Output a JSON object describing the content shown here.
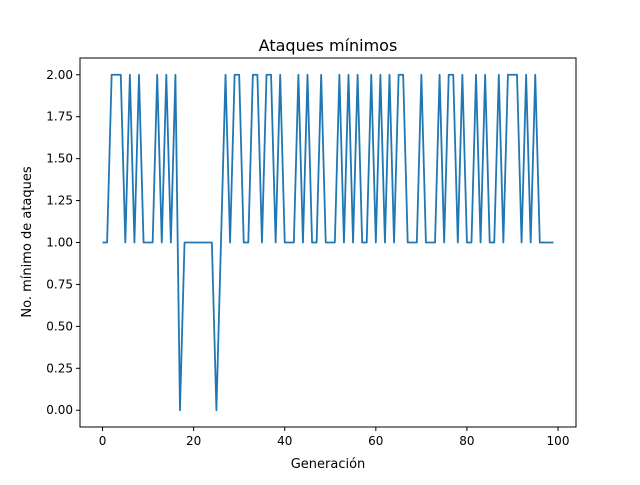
{
  "chart_data": {
    "type": "line",
    "title": "Ataques mínimos",
    "xlabel": "Generación",
    "ylabel": "No. mínimo de ataques",
    "xlim": [
      -4.95,
      103.95
    ],
    "ylim": [
      -0.1,
      2.1
    ],
    "xticks": [
      0,
      20,
      40,
      60,
      80,
      100
    ],
    "yticks": [
      0.0,
      0.25,
      0.5,
      0.75,
      1.0,
      1.25,
      1.5,
      1.75,
      2.0
    ],
    "xtick_labels": [
      "0",
      "20",
      "40",
      "60",
      "80",
      "100"
    ],
    "ytick_labels": [
      "0.00",
      "0.25",
      "0.50",
      "0.75",
      "1.00",
      "1.25",
      "1.50",
      "1.75",
      "2.00"
    ],
    "grid": false,
    "series": [
      {
        "color": "#1f77b4",
        "x": [
          0,
          1,
          2,
          3,
          4,
          5,
          6,
          7,
          8,
          9,
          10,
          11,
          12,
          13,
          14,
          15,
          16,
          17,
          18,
          19,
          20,
          21,
          22,
          23,
          24,
          25,
          26,
          27,
          28,
          29,
          30,
          31,
          32,
          33,
          34,
          35,
          36,
          37,
          38,
          39,
          40,
          41,
          42,
          43,
          44,
          45,
          46,
          47,
          48,
          49,
          50,
          51,
          52,
          53,
          54,
          55,
          56,
          57,
          58,
          59,
          60,
          61,
          62,
          63,
          64,
          65,
          66,
          67,
          68,
          69,
          70,
          71,
          72,
          73,
          74,
          75,
          76,
          77,
          78,
          79,
          80,
          81,
          82,
          83,
          84,
          85,
          86,
          87,
          88,
          89,
          90,
          91,
          92,
          93,
          94,
          95,
          96,
          97,
          98,
          99
        ],
        "y": [
          1,
          1,
          2,
          2,
          2,
          1,
          2,
          1,
          2,
          1,
          1,
          1,
          2,
          1,
          2,
          1,
          2,
          0,
          1,
          1,
          1,
          1,
          1,
          1,
          1,
          0,
          1,
          2,
          1,
          2,
          2,
          1,
          1,
          2,
          2,
          1,
          2,
          2,
          1,
          2,
          1,
          1,
          1,
          2,
          1,
          2,
          1,
          1,
          2,
          1,
          1,
          1,
          2,
          1,
          2,
          1,
          2,
          1,
          1,
          2,
          1,
          2,
          1,
          2,
          1,
          2,
          2,
          1,
          1,
          1,
          2,
          1,
          1,
          1,
          2,
          1,
          2,
          2,
          1,
          2,
          1,
          1,
          2,
          1,
          2,
          1,
          1,
          2,
          1,
          2,
          2,
          2,
          1,
          2,
          1,
          2,
          1,
          1,
          1,
          1
        ]
      }
    ]
  }
}
